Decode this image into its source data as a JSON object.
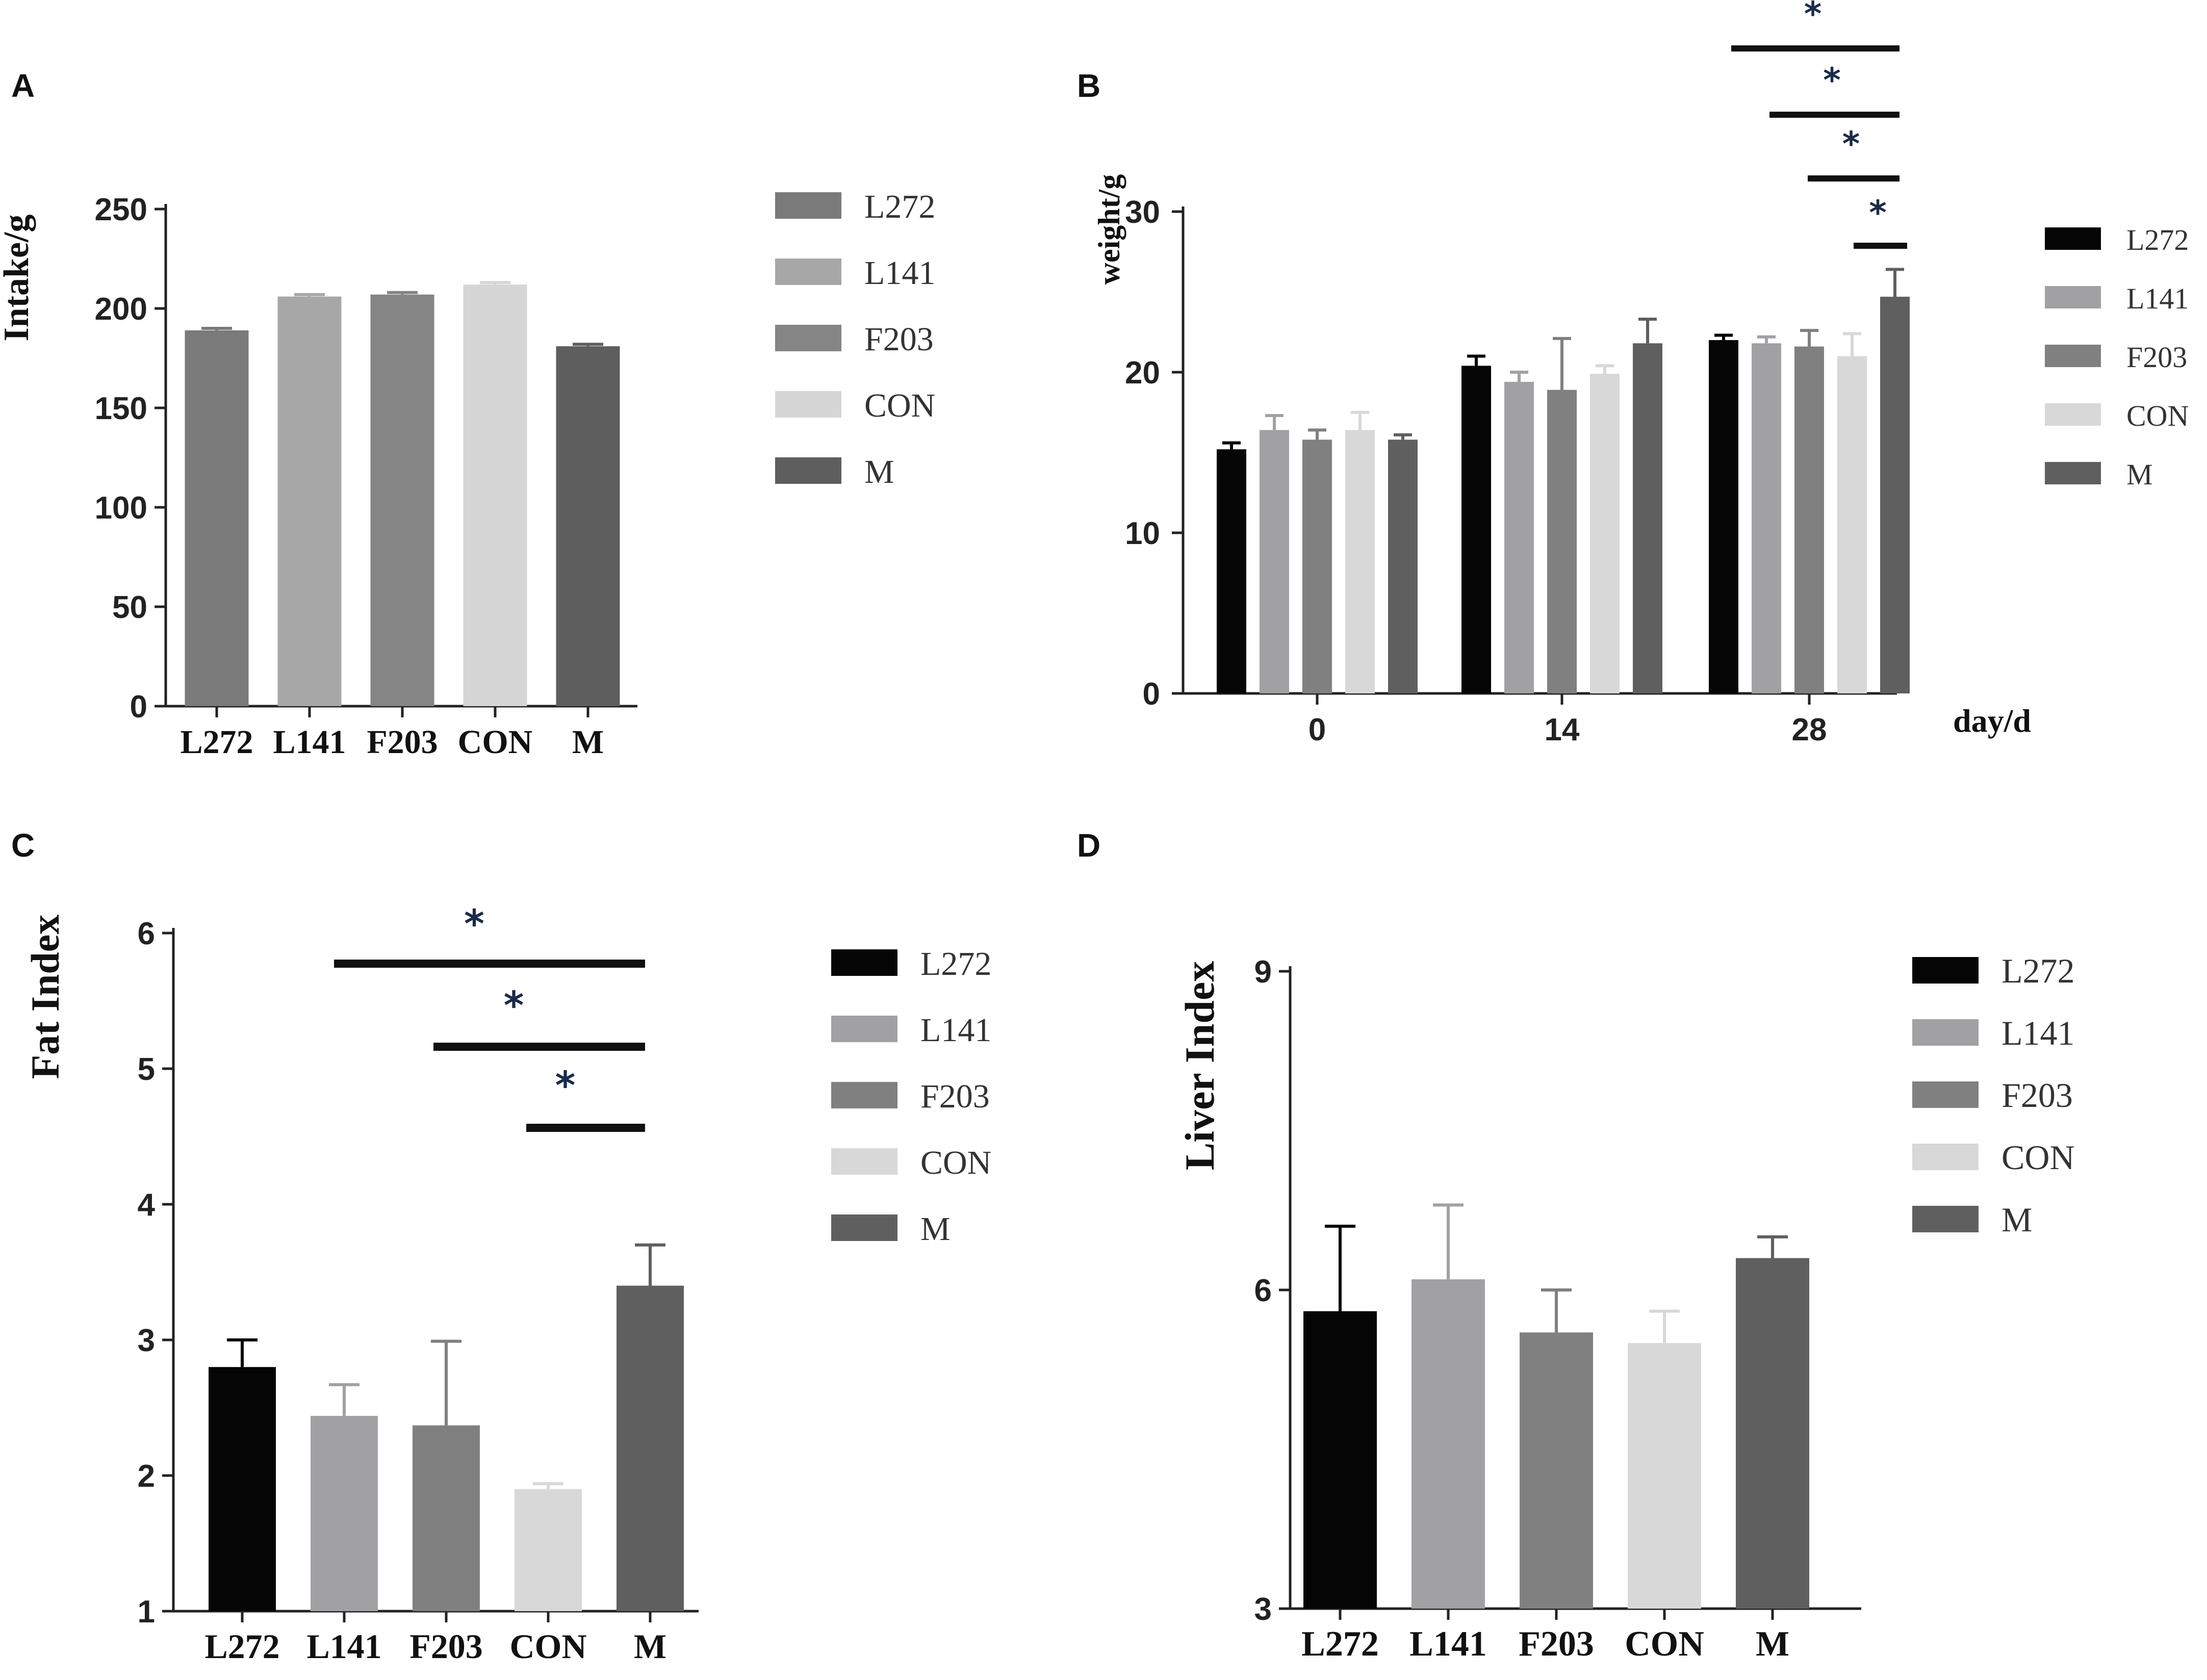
{
  "figure": {
    "panels": [
      "A",
      "B",
      "C",
      "D"
    ]
  },
  "colors": {
    "L272_A": "#7a7a7a",
    "L141_A": "#a7a7a7",
    "F203_A": "#858585",
    "CON_A": "#d6d6d6",
    "M_A": "#5e5e5e",
    "L272": "#050505",
    "L141": "#a1a1a4",
    "F203": "#808080",
    "CON": "#d8d8d8",
    "M": "#5f5f5f"
  },
  "chart_data": [
    {
      "panel": "A",
      "type": "bar",
      "title": "",
      "xlabel": "",
      "ylabel": "Intake/g",
      "ylim": [
        0,
        250
      ],
      "yticks": [
        "0",
        "50",
        "100",
        "150",
        "200",
        "250"
      ],
      "categories": [
        "L272",
        "L141",
        "F203",
        "CON",
        "M"
      ],
      "values": [
        189,
        206,
        207,
        212,
        181
      ],
      "errors": [
        1,
        1,
        1,
        1,
        1
      ],
      "legend": [
        "L272",
        "L141",
        "F203",
        "CON",
        "M"
      ]
    },
    {
      "panel": "B",
      "type": "bar",
      "title": "",
      "xlabel": "day/d",
      "ylabel": "weight/g",
      "ylim": [
        0,
        30
      ],
      "yticks": [
        "0",
        "10",
        "20",
        "30"
      ],
      "categories": [
        "0",
        "14",
        "28"
      ],
      "series": [
        {
          "name": "L272",
          "values": [
            15.2,
            20.4,
            22.0
          ],
          "errors": [
            0.4,
            0.6,
            0.3
          ]
        },
        {
          "name": "L141",
          "values": [
            16.4,
            19.4,
            21.8
          ],
          "errors": [
            0.9,
            0.6,
            0.4
          ]
        },
        {
          "name": "F203",
          "values": [
            15.8,
            18.9,
            21.6
          ],
          "errors": [
            0.6,
            3.2,
            1.0
          ]
        },
        {
          "name": "CON",
          "values": [
            16.4,
            19.9,
            21.0
          ],
          "errors": [
            1.1,
            0.5,
            1.4
          ]
        },
        {
          "name": "M",
          "values": [
            15.8,
            21.8,
            24.7
          ],
          "errors": [
            0.3,
            1.5,
            1.7
          ]
        }
      ],
      "significance": [
        "*",
        "*",
        "*",
        "*"
      ],
      "legend": [
        "L272",
        "L141",
        "F203",
        "CON",
        "M"
      ]
    },
    {
      "panel": "C",
      "type": "bar",
      "title": "",
      "xlabel": "",
      "ylabel": "Fat Index",
      "ylim": [
        1,
        6
      ],
      "yticks": [
        "1",
        "2",
        "3",
        "4",
        "5",
        "6"
      ],
      "categories": [
        "L272",
        "L141",
        "F203",
        "CON",
        "M"
      ],
      "values": [
        2.8,
        2.44,
        2.37,
        1.9,
        3.4
      ],
      "errors": [
        0.2,
        0.23,
        0.62,
        0.04,
        0.3
      ],
      "significance": [
        "*",
        "*",
        "*"
      ],
      "legend": [
        "L272",
        "L141",
        "F203",
        "CON",
        "M"
      ]
    },
    {
      "panel": "D",
      "type": "bar",
      "title": "",
      "xlabel": "",
      "ylabel": "Liver Index",
      "ylim": [
        3,
        9
      ],
      "yticks": [
        "3",
        "6",
        "9"
      ],
      "categories": [
        "L272",
        "L141",
        "F203",
        "CON",
        "M"
      ],
      "values": [
        5.8,
        6.1,
        5.6,
        5.5,
        6.3
      ],
      "errors": [
        0.8,
        0.7,
        0.4,
        0.3,
        0.2
      ],
      "legend": [
        "L272",
        "L141",
        "F203",
        "CON",
        "M"
      ]
    }
  ]
}
